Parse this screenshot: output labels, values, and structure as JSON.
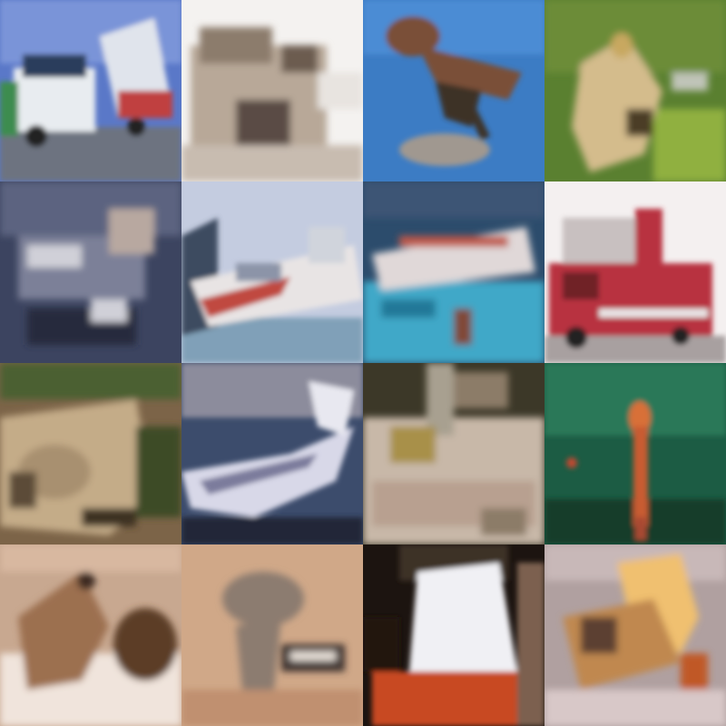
{
  "image_grid": {
    "rows": 4,
    "cols": 4,
    "tiles": [
      {
        "subject": "truck",
        "colors": {
          "sky": "#5a78c8",
          "road": "#6d7380",
          "body": "#e8ecf0",
          "accent": "#c04040"
        }
      },
      {
        "subject": "building",
        "colors": {
          "sky": "#f4f2f0",
          "main": "#b8a898",
          "dark": "#5a4c44",
          "ground": "#c8bcb0"
        }
      },
      {
        "subject": "bird-flying",
        "colors": {
          "sky": "#3c7cc4",
          "body": "#7a5038",
          "belly": "#a09890",
          "dark": "#3c3028"
        }
      },
      {
        "subject": "animal-grass",
        "colors": {
          "bg": "#5a8030",
          "light": "#90b040",
          "body": "#d4bc8c",
          "dark": "#4c3c28"
        }
      },
      {
        "subject": "ship-dark",
        "colors": {
          "bg": "#3c4460",
          "light": "#d0d0d8",
          "mid": "#7c8098",
          "dark": "#282c3c"
        }
      },
      {
        "subject": "ship",
        "colors": {
          "sky": "#c4cce0",
          "water": "#80a0b8",
          "hull": "#e8e4e4",
          "accent": "#c04840"
        }
      },
      {
        "subject": "ship-water",
        "colors": {
          "bg": "#2c4c6c",
          "water": "#40a8c8",
          "hull": "#e0d8d8",
          "accent": "#c05848"
        }
      },
      {
        "subject": "red-truck",
        "colors": {
          "sky": "#f4f0f0",
          "road": "#a8a0a0",
          "body": "#b83040",
          "dark": "#702028"
        }
      },
      {
        "subject": "frog",
        "colors": {
          "bg": "#7c6448",
          "light": "#c4ac88",
          "dark": "#3c3020",
          "leaf": "#4c6030"
        }
      },
      {
        "subject": "boat-close",
        "colors": {
          "bg": "#3c4c6c",
          "hull": "#d8d8e8",
          "mid": "#8c8c9c",
          "dark": "#202838"
        }
      },
      {
        "subject": "dog-ground",
        "colors": {
          "bg": "#3c3828",
          "ground": "#c8b8a8",
          "mid": "#8c7c68",
          "accent": "#a89048"
        }
      },
      {
        "subject": "bird-green",
        "colors": {
          "bg": "#1c5c44",
          "light": "#2c7858",
          "accent": "#d87038",
          "dark": "#143c2c"
        }
      },
      {
        "subject": "cat",
        "colors": {
          "bg": "#c8a890",
          "light": "#f0e4dc",
          "fur": "#9c7050",
          "dark": "#5c3c28"
        }
      },
      {
        "subject": "horse",
        "colors": {
          "bg": "#d0a888",
          "mid": "#8c7c70",
          "dark": "#403430",
          "light": "#e8e0d8"
        }
      },
      {
        "subject": "dark-scene",
        "colors": {
          "bg": "#1c1410",
          "light": "#f0f0f4",
          "accent": "#c84820",
          "mid": "#7c6050"
        }
      },
      {
        "subject": "animal-orange",
        "colors": {
          "bg": "#b0a0a0",
          "light": "#f0c070",
          "body": "#c08850",
          "dark": "#5c4030"
        }
      }
    ]
  }
}
